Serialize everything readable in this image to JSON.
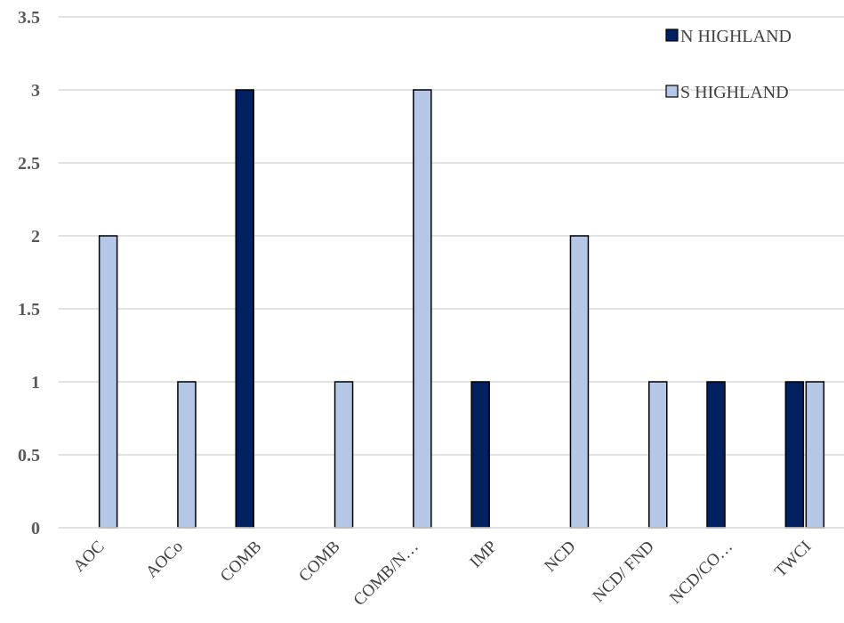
{
  "chart_data": {
    "type": "bar",
    "categories": [
      "AOC",
      "AOCo",
      "COMB",
      "COMB",
      "COMB/N…",
      "IMP",
      "NCD",
      "NCD/ FND",
      "NCD/CO…",
      "TWCI"
    ],
    "series": [
      {
        "name": "N HIGHLAND",
        "color": "#002060",
        "values": [
          0,
          0,
          3,
          0,
          0,
          1,
          0,
          0,
          1,
          1
        ]
      },
      {
        "name": "S HIGHLAND",
        "color": "#b4c7e7",
        "values": [
          2,
          1,
          0,
          1,
          3,
          0,
          2,
          1,
          0,
          1
        ]
      }
    ],
    "y_ticks": [
      "0",
      "0.5",
      "1",
      "1.5",
      "2",
      "2.5",
      "3",
      "3.5"
    ],
    "ylim": [
      0,
      3.5
    ],
    "grid": true,
    "legend_position": "top-right"
  }
}
